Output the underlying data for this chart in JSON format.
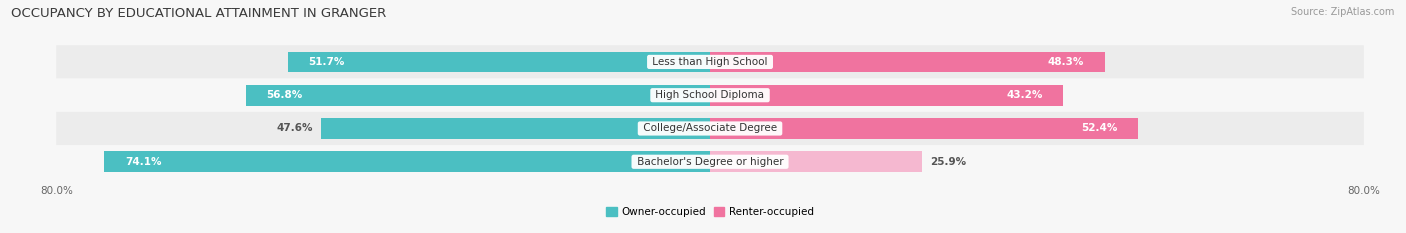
{
  "title": "OCCUPANCY BY EDUCATIONAL ATTAINMENT IN GRANGER",
  "source": "Source: ZipAtlas.com",
  "categories": [
    "Less than High School",
    "High School Diploma",
    "College/Associate Degree",
    "Bachelor's Degree or higher"
  ],
  "owner_values": [
    51.7,
    56.8,
    47.6,
    74.1
  ],
  "renter_values": [
    48.3,
    43.2,
    52.4,
    25.9
  ],
  "owner_color": "#4bbfc2",
  "renter_color": "#f0739f",
  "renter_light_color": "#f5b8d0",
  "owner_label": "Owner-occupied",
  "renter_label": "Renter-occupied",
  "axis_min": -80.0,
  "axis_max": 80.0,
  "title_fontsize": 9.5,
  "source_fontsize": 7,
  "label_fontsize": 7.5,
  "value_fontsize": 7.5,
  "legend_fontsize": 7.5,
  "background_color": "#f7f7f7",
  "bar_height": 0.62,
  "row_bg_even": "#ececec",
  "row_bg_odd": "#f7f7f7",
  "owner_in_label_color": "#ffffff",
  "owner_out_label_color": "#555555",
  "renter_in_label_color": "#ffffff",
  "renter_out_label_color": "#555555"
}
